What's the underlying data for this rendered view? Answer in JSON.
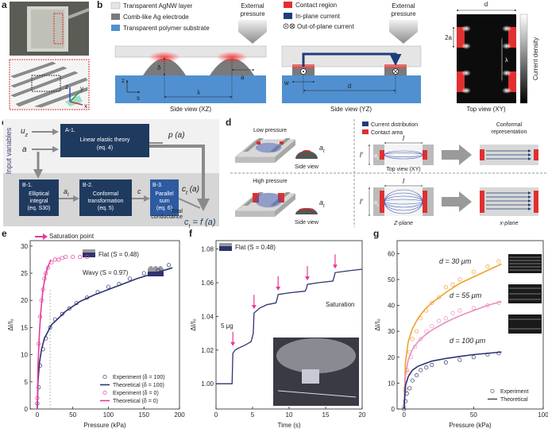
{
  "panel_labels": [
    "a",
    "b",
    "c",
    "d",
    "e",
    "f",
    "g"
  ],
  "a": {
    "axes": [
      "z",
      "y",
      "x"
    ]
  },
  "b": {
    "legend": [
      "Transparent AgNW layer",
      "Comb-like Ag electrode",
      "Transparent polymer substrate"
    ],
    "pressure": [
      "External",
      "pressure"
    ],
    "xz": {
      "delta": "δ",
      "a": "a",
      "z": "z",
      "s": "s",
      "lambda": "λ",
      "caption": "Side view (XZ)"
    },
    "legend2": [
      "Contact region",
      "In-plane current",
      "Out-of-plane current"
    ],
    "pressure2": [
      "External",
      "pressure"
    ],
    "yz": {
      "w": "w",
      "d": "d",
      "caption": "Side view (YZ)"
    },
    "xy": {
      "d": "d",
      "two_a": "2a",
      "lambda": "λ",
      "caption": "Top view (XY)",
      "colorbar": "Current density"
    }
  },
  "c": {
    "input": "Input variables",
    "uz": {
      "base": "u",
      "sub": "z"
    },
    "a": "a",
    "A1": {
      "id": "A-1.",
      "lines": [
        "Linear elastic theory",
        "(eq. 4)"
      ]
    },
    "pa": "p (a)",
    "B1": {
      "id": "B-1.",
      "lines": [
        "Elliptical",
        "integral",
        "(eq. S30)"
      ]
    },
    "at": {
      "base": "a",
      "sub": "t"
    },
    "B2": {
      "id": "B-2.",
      "lines": [
        "Conformal",
        "transformation",
        "(eq. 5)"
      ]
    },
    "c": "c",
    "B3": {
      "id": "B-3.",
      "lines": [
        "Parallel",
        "sum",
        "(eq. 6)"
      ]
    },
    "ct": {
      "base": "c",
      "sub": "t",
      "rest": " (a)"
    },
    "total": [
      "Total",
      "conductance"
    ],
    "result": {
      "base": "c",
      "sub": "t",
      "rest": " = f (a)"
    }
  },
  "d": {
    "top": {
      "title": "Low pressure",
      "at": {
        "base": "a",
        "sub": "t"
      },
      "side_view": "Side view",
      "legend": [
        "Current distribution",
        "Contact area"
      ],
      "l": "l",
      "l_prime": "l′",
      "at2": {
        "base": "a",
        "sub": "t"
      },
      "caption": "Top view (XY)",
      "conformal": [
        "Conformal",
        "representation"
      ]
    },
    "bottom": {
      "title": "High pressure",
      "at": {
        "base": "a",
        "sub": "t"
      },
      "side_view": "Side view",
      "l": "l",
      "l_prime": "l′",
      "at2": {
        "base": "a",
        "sub": "t"
      },
      "caption": "Z-plane",
      "caption2": "x-plane"
    }
  },
  "chart_data": [
    {
      "type": "line",
      "xlabel": "Pressure (kPa)",
      "ylabel": "ΔI/I₀",
      "xlim": [
        -10,
        200
      ],
      "xticks": [
        0,
        50,
        100,
        150,
        200
      ],
      "ylim": [
        0,
        31
      ],
      "yticks": [
        0,
        5,
        10,
        15,
        20,
        25,
        30
      ],
      "legend": "lower right",
      "vline": 18,
      "annotations": [
        "Saturation point",
        "Flat (S = 0.48)",
        "Wavy (S = 0.97)"
      ],
      "series": [
        {
          "name": "Experiment (δ = 100)",
          "kind": "scatter",
          "color": "#2e3370",
          "x": [
            0,
            2,
            4,
            8,
            12,
            18,
            25,
            35,
            45,
            55,
            70,
            85,
            100,
            115,
            130,
            150,
            170,
            185
          ],
          "values": [
            1,
            4,
            8,
            11,
            13,
            15,
            16.5,
            17.5,
            18.5,
            19.5,
            20.5,
            21.5,
            22.5,
            23,
            24,
            25,
            25.5,
            26.5
          ]
        },
        {
          "name": "Theoretical (δ = 100)",
          "kind": "line",
          "color": "#2e3370",
          "x": [
            0,
            1,
            3,
            6,
            10,
            20,
            40,
            60,
            80,
            100,
            120,
            140,
            160,
            180,
            190
          ],
          "values": [
            0,
            5,
            8.5,
            11,
            13,
            15.5,
            18,
            19.8,
            21,
            22,
            23,
            24,
            24.8,
            25.6,
            26
          ]
        },
        {
          "name": "Experiment (δ = 0)",
          "kind": "scatter",
          "color": "#e6399b",
          "x": [
            0,
            2,
            4,
            6,
            8,
            10,
            12,
            15,
            20,
            25,
            30,
            35,
            40,
            50,
            60,
            70
          ],
          "values": [
            2,
            12,
            17,
            20,
            22,
            24,
            25,
            26,
            27,
            27.5,
            27.5,
            27.8,
            28,
            28,
            28,
            28
          ]
        },
        {
          "name": "Theoretical (δ = 0)",
          "kind": "line",
          "color": "#e6399b",
          "x": [
            0,
            1,
            3,
            5,
            8,
            12,
            16,
            19
          ],
          "values": [
            0,
            8,
            14,
            18,
            22,
            25,
            26.5,
            27.5
          ]
        }
      ]
    },
    {
      "type": "line",
      "xlabel": "Time (s)",
      "ylabel": "ΔI/I₀",
      "xlim": [
        0,
        20
      ],
      "xticks": [
        0,
        5,
        10,
        15,
        20
      ],
      "ylim": [
        0.985,
        1.085
      ],
      "yticks": [
        {
          "value": 1,
          "label": "1.00"
        },
        {
          "value": 1.02,
          "label": "1.02"
        },
        {
          "value": 1.04,
          "label": "1.04"
        },
        {
          "value": 1.06,
          "label": "1.06"
        },
        {
          "value": 1.08,
          "label": "1.08"
        }
      ],
      "annotations": [
        "Flat (S = 0.48)",
        "5 μg",
        "Saturation"
      ],
      "load_times": [
        2.3,
        5.2,
        8.5,
        12.5,
        16.3
      ],
      "series": [
        {
          "kind": "line",
          "color": "#2e3370",
          "x": [
            0,
            2.2,
            2.3,
            2.6,
            3,
            4,
            4.8,
            5.1,
            5.2,
            6,
            7,
            8.2,
            8.4,
            8.5,
            10,
            12.2,
            12.4,
            12.5,
            14,
            16,
            16.2,
            16.3,
            18,
            20
          ],
          "values": [
            1,
            1,
            1.018,
            1.02,
            1.021,
            1.023,
            1.025,
            1.03,
            1.042,
            1.045,
            1.047,
            1.048,
            1.051,
            1.053,
            1.054,
            1.055,
            1.057,
            1.059,
            1.06,
            1.061,
            1.064,
            1.066,
            1.067,
            1.068
          ]
        }
      ]
    },
    {
      "type": "line",
      "xlabel": "Pressure (kPa)",
      "ylabel": "ΔI/I₀",
      "xlim": [
        -5,
        100
      ],
      "xticks": [
        0,
        50,
        100
      ],
      "ylim": [
        0,
        65
      ],
      "yticks": [
        0,
        10,
        20,
        30,
        40,
        50,
        60
      ],
      "legend": [
        "Experiment",
        "Theoretical"
      ],
      "series": [
        {
          "name": "d = 30 μm",
          "color": "#f0a030",
          "experiment": {
            "x": [
              0,
              1,
              2,
              4,
              6,
              9,
              12,
              16,
              20,
              25,
              30,
              35,
              40,
              50,
              60,
              68
            ],
            "values": [
              1,
              8,
              15,
              22,
              27,
              30,
              35,
              38,
              41,
              43,
              47,
              48,
              50,
              53,
              55,
              57
            ]
          },
          "theory": {
            "x": [
              0,
              1,
              3,
              6,
              10,
              15,
              20,
              30,
              40,
              50,
              60,
              70
            ],
            "values": [
              0,
              18,
              26,
              31,
              35,
              38.5,
              41,
              45,
              48.5,
              51,
              53.5,
              56
            ]
          }
        },
        {
          "name": "d = 55 μm",
          "color": "#e88fc0",
          "experiment": {
            "x": [
              0,
              1,
              3,
              5,
              8,
              12,
              16,
              20,
              25,
              30,
              35,
              40,
              50,
              60,
              68
            ],
            "values": [
              1,
              7,
              14,
              20,
              24,
              27,
              30,
              32,
              34,
              35,
              37,
              38,
              39,
              40,
              41
            ]
          },
          "theory": {
            "x": [
              0,
              1,
              3,
              6,
              10,
              15,
              20,
              30,
              40,
              50,
              60,
              70
            ],
            "values": [
              0,
              13,
              19,
              23,
              26,
              28.5,
              30.5,
              33.5,
              36,
              38,
              40,
              41.5
            ]
          }
        },
        {
          "name": "d = 100 μm",
          "color": "#2e3370",
          "experiment": {
            "x": [
              0,
              1,
              2,
              4,
              6,
              9,
              12,
              16,
              20,
              30,
              40,
              50,
              60,
              68
            ],
            "values": [
              0,
              3,
              6,
              8,
              11,
              13,
              15,
              16,
              17,
              18,
              19,
              20,
              21,
              21.5
            ]
          },
          "theory": {
            "x": [
              0,
              1,
              3,
              6,
              10,
              15,
              20,
              30,
              40,
              50,
              60,
              70
            ],
            "values": [
              0,
              9,
              12.5,
              15,
              16.5,
              17.5,
              18.5,
              19.5,
              20.3,
              21,
              21.5,
              22
            ]
          }
        }
      ]
    }
  ]
}
